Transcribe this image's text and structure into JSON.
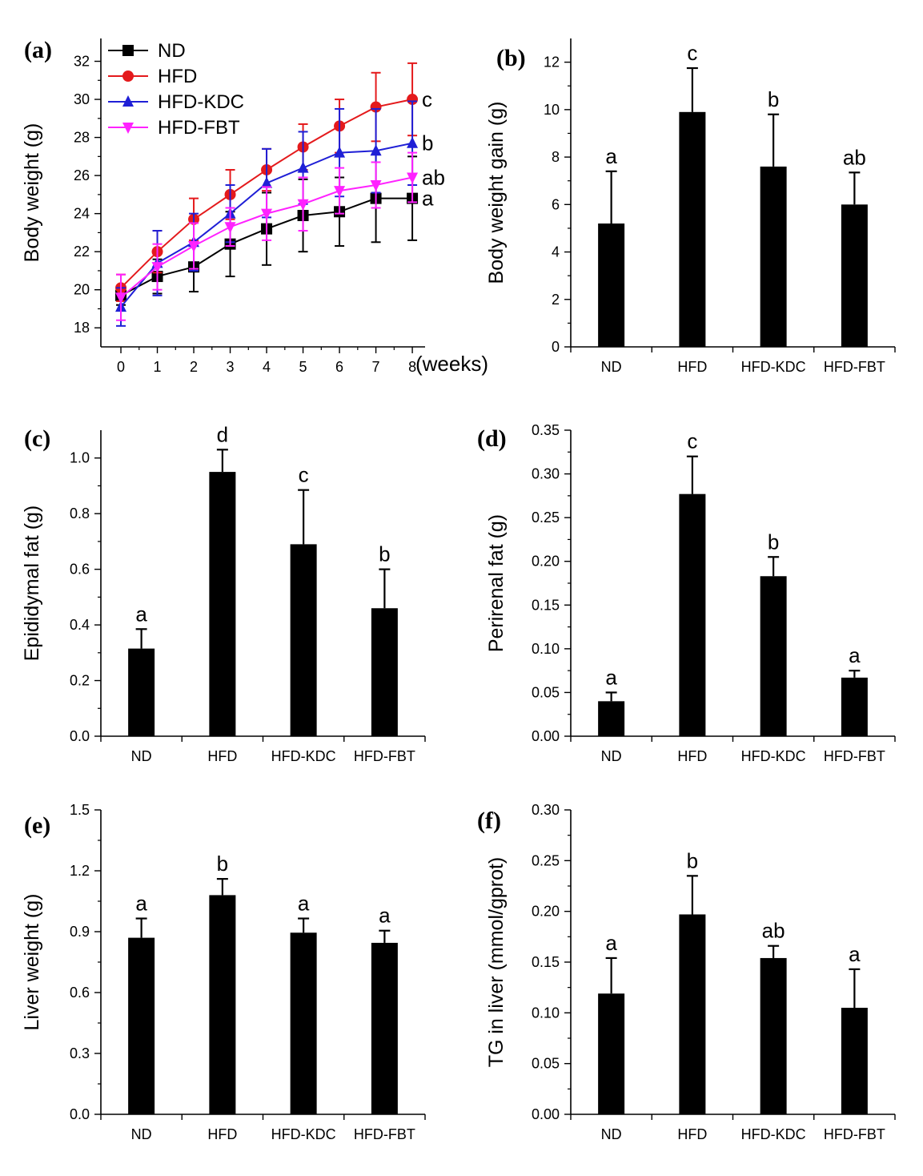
{
  "figure": {
    "colors": {
      "ND": "#000000",
      "HFD": "#e41a1c",
      "HFD-KDC": "#1f1fd6",
      "HFD-FBT": "#ff22ff",
      "bar": "#000000",
      "axis": "#000000"
    }
  },
  "chart_data": [
    {
      "id": "a",
      "panel_label": "(a)",
      "type": "line",
      "xlabel": "",
      "x_unit_label": "(weeks)",
      "ylabel": "Body weight (g)",
      "x": [
        0,
        1,
        2,
        3,
        4,
        5,
        6,
        7,
        8
      ],
      "xlim": [
        -0.55,
        8.35
      ],
      "ylim": [
        17,
        33.2
      ],
      "yticks": [
        18,
        20,
        22,
        24,
        26,
        28,
        30,
        32
      ],
      "xticks": [
        0,
        1,
        2,
        3,
        4,
        5,
        6,
        7,
        8
      ],
      "legend_position": "top-left",
      "series": [
        {
          "name": "ND",
          "marker": "square",
          "color": "#000000",
          "values": [
            19.7,
            20.7,
            21.2,
            22.4,
            23.2,
            23.9,
            24.1,
            24.8,
            24.8
          ],
          "errors": [
            0.5,
            0.9,
            1.3,
            1.7,
            1.9,
            1.9,
            1.8,
            2.3,
            2.2
          ],
          "sig_label": "a"
        },
        {
          "name": "HFD",
          "marker": "circle",
          "color": "#e41a1c",
          "values": [
            20.1,
            22.0,
            23.7,
            25.0,
            26.3,
            27.5,
            28.6,
            29.6,
            30.0
          ],
          "errors": [
            0.7,
            1.1,
            1.1,
            1.3,
            1.1,
            1.2,
            1.4,
            1.8,
            1.9
          ],
          "sig_label": "c"
        },
        {
          "name": "HFD-KDC",
          "marker": "triangle-up",
          "color": "#1f1fd6",
          "values": [
            19.1,
            21.4,
            22.5,
            24.0,
            25.6,
            26.4,
            27.2,
            27.3,
            27.7
          ],
          "errors": [
            1.0,
            1.7,
            1.5,
            1.5,
            1.8,
            1.9,
            2.3,
            2.2,
            2.2
          ],
          "sig_label": "b"
        },
        {
          "name": "HFD-FBT",
          "marker": "triangle-down",
          "color": "#ff22ff",
          "values": [
            19.6,
            21.2,
            22.3,
            23.3,
            24.0,
            24.5,
            25.2,
            25.5,
            25.9
          ],
          "errors": [
            1.2,
            1.2,
            1.2,
            1.0,
            1.4,
            1.4,
            1.2,
            1.2,
            1.3
          ],
          "sig_label": "ab"
        }
      ]
    },
    {
      "id": "b",
      "panel_label": "(b)",
      "type": "bar",
      "categories": [
        "ND",
        "HFD",
        "HFD-KDC",
        "HFD-FBT"
      ],
      "values": [
        5.2,
        9.9,
        7.6,
        6.0
      ],
      "errors": [
        2.2,
        1.85,
        2.2,
        1.35
      ],
      "sig_labels": [
        "a",
        "c",
        "b",
        "ab"
      ],
      "xlabel": "",
      "ylabel": "Body weight gain (g)",
      "ylim": [
        0,
        13
      ],
      "yticks": [
        0,
        2,
        4,
        6,
        8,
        10,
        12
      ],
      "ytick_labels": [
        "0",
        "2",
        "4",
        "6",
        "8",
        "10",
        "12"
      ]
    },
    {
      "id": "c",
      "panel_label": "(c)",
      "type": "bar",
      "categories": [
        "ND",
        "HFD",
        "HFD-KDC",
        "HFD-FBT"
      ],
      "values": [
        0.315,
        0.95,
        0.69,
        0.46
      ],
      "errors": [
        0.07,
        0.08,
        0.195,
        0.14
      ],
      "sig_labels": [
        "a",
        "d",
        "c",
        "b"
      ],
      "xlabel": "",
      "ylabel": "Epididymal fat (g)",
      "ylim": [
        0,
        1.1
      ],
      "yticks": [
        0,
        0.2,
        0.4,
        0.6,
        0.8,
        1.0
      ],
      "ytick_labels": [
        "0.0",
        "0.2",
        "0.4",
        "0.6",
        "0.8",
        "1.0"
      ]
    },
    {
      "id": "d",
      "panel_label": "(d)",
      "type": "bar",
      "categories": [
        "ND",
        "HFD",
        "HFD-KDC",
        "HFD-FBT"
      ],
      "values": [
        0.04,
        0.277,
        0.183,
        0.067
      ],
      "errors": [
        0.01,
        0.043,
        0.022,
        0.008
      ],
      "sig_labels": [
        "a",
        "c",
        "b",
        "a"
      ],
      "xlabel": "",
      "ylabel": "Perirenal fat (g)",
      "ylim": [
        0,
        0.35
      ],
      "yticks": [
        0,
        0.05,
        0.1,
        0.15,
        0.2,
        0.25,
        0.3,
        0.35
      ],
      "ytick_labels": [
        "0.00",
        "0.05",
        "0.10",
        "0.15",
        "0.20",
        "0.25",
        "0.30",
        "0.35"
      ]
    },
    {
      "id": "e",
      "panel_label": "(e)",
      "type": "bar",
      "categories": [
        "ND",
        "HFD",
        "HFD-KDC",
        "HFD-FBT"
      ],
      "values": [
        0.87,
        1.08,
        0.895,
        0.845
      ],
      "errors": [
        0.095,
        0.08,
        0.07,
        0.06
      ],
      "sig_labels": [
        "a",
        "b",
        "a",
        "a"
      ],
      "xlabel": "",
      "ylabel": "Liver weight (g)",
      "ylim": [
        0,
        1.5
      ],
      "yticks": [
        0,
        0.3,
        0.6,
        0.9,
        1.2,
        1.5
      ],
      "ytick_labels": [
        "0.0",
        "0.3",
        "0.6",
        "0.9",
        "1.2",
        "1.5"
      ]
    },
    {
      "id": "f",
      "panel_label": "(f)",
      "type": "bar",
      "categories": [
        "ND",
        "HFD",
        "HFD-KDC",
        "HFD-FBT"
      ],
      "values": [
        0.119,
        0.197,
        0.154,
        0.105
      ],
      "errors": [
        0.035,
        0.038,
        0.012,
        0.038
      ],
      "sig_labels": [
        "a",
        "b",
        "ab",
        "a"
      ],
      "xlabel": "",
      "ylabel": "TG in liver (mmol/gprot)",
      "ylim": [
        0,
        0.3
      ],
      "yticks": [
        0,
        0.05,
        0.1,
        0.15,
        0.2,
        0.25,
        0.3
      ],
      "ytick_labels": [
        "0.00",
        "0.05",
        "0.10",
        "0.15",
        "0.20",
        "0.25",
        "0.30"
      ]
    }
  ]
}
